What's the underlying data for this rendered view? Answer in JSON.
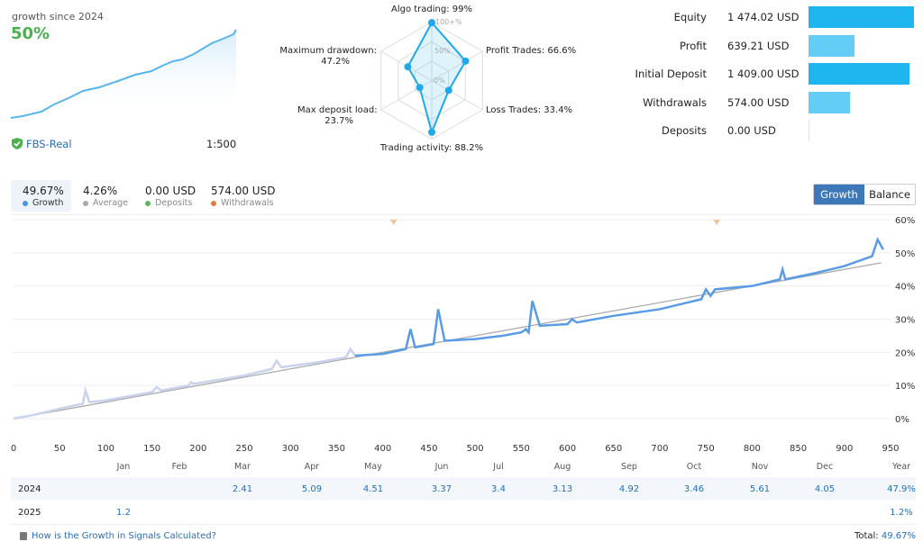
{
  "summary": {
    "title": "growth since 2024",
    "growth": "50%",
    "broker": "FBS-Real",
    "leverage": "1:500"
  },
  "radar": {
    "axes": [
      {
        "label": "Algo trading: 99%",
        "value": 99
      },
      {
        "label": "Profit Trades: 66.6%",
        "value": 66.6
      },
      {
        "label": "Loss Trades: 33.4%",
        "value": 33.4
      },
      {
        "label": "Trading activity: 88.2%",
        "value": 88.2
      },
      {
        "label": "Max deposit load:",
        "sub": "23.7%",
        "value": 23.7
      },
      {
        "label": "Maximum drawdown:",
        "sub": "47.2%",
        "value": 47.2
      }
    ],
    "ring_labels": [
      "100+%",
      "50%",
      "0%"
    ]
  },
  "account": [
    {
      "label": "Equity",
      "value": "1 474.02 USD",
      "amount": 1474.02,
      "color": "#1fb6f0"
    },
    {
      "label": "Profit",
      "value": "639.21 USD",
      "amount": 639.21,
      "color": "#63cdf5"
    },
    {
      "label": "Initial Deposit",
      "value": "1 409.00 USD",
      "amount": 1409,
      "color": "#1fb6f0"
    },
    {
      "label": "Withdrawals",
      "value": "574.00 USD",
      "amount": 574,
      "color": "#63cdf5"
    },
    {
      "label": "Deposits",
      "value": "0.00 USD",
      "amount": 0,
      "color": "#63cdf5"
    }
  ],
  "stats": [
    {
      "value": "49.67%",
      "label": "Growth",
      "color": "#4a90e2"
    },
    {
      "value": "4.26%",
      "label": "Average",
      "color": "#aaaaaa"
    },
    {
      "value": "0.00 USD",
      "label": "Deposits",
      "color": "#5cb85c"
    },
    {
      "value": "574.00 USD",
      "label": "Withdrawals",
      "color": "#e07b39"
    }
  ],
  "toggle": {
    "growth": "Growth",
    "balance": "Balance"
  },
  "chart_data": {
    "type": "line",
    "xlim": [
      0,
      950
    ],
    "ylim": [
      0,
      60
    ],
    "x_ticks": [
      "0",
      "50",
      "100",
      "150",
      "200",
      "250",
      "300",
      "350",
      "400",
      "450",
      "500",
      "550",
      "600",
      "650",
      "700",
      "750",
      "800",
      "850",
      "900",
      "950"
    ],
    "y_ticks": [
      "0%",
      "10%",
      "20%",
      "30%",
      "40%",
      "50%",
      "60%"
    ],
    "series": [
      {
        "name": "Growth",
        "color": "#5a9be6",
        "points": [
          [
            0,
            0
          ],
          [
            20,
            1
          ],
          [
            50,
            3
          ],
          [
            75,
            4.5
          ],
          [
            78,
            8.5
          ],
          [
            82,
            5
          ],
          [
            100,
            5.5
          ],
          [
            150,
            8
          ],
          [
            155,
            9.5
          ],
          [
            160,
            8.5
          ],
          [
            190,
            10
          ],
          [
            192,
            11
          ],
          [
            195,
            10.5
          ],
          [
            250,
            13
          ],
          [
            280,
            15
          ],
          [
            285,
            17.5
          ],
          [
            290,
            15.5
          ],
          [
            330,
            17
          ],
          [
            360,
            18.5
          ],
          [
            365,
            21
          ],
          [
            370,
            19
          ],
          [
            400,
            19.5
          ],
          [
            425,
            21
          ],
          [
            430,
            27
          ],
          [
            435,
            21.5
          ],
          [
            455,
            22.5
          ],
          [
            460,
            33
          ],
          [
            467,
            23.5
          ],
          [
            500,
            24
          ],
          [
            530,
            25
          ],
          [
            550,
            26
          ],
          [
            555,
            27
          ],
          [
            558,
            26
          ],
          [
            562,
            35.5
          ],
          [
            570,
            28
          ],
          [
            600,
            28.5
          ],
          [
            605,
            30
          ],
          [
            610,
            29
          ],
          [
            650,
            31
          ],
          [
            700,
            33
          ],
          [
            745,
            36
          ],
          [
            750,
            39
          ],
          [
            755,
            37
          ],
          [
            760,
            39
          ],
          [
            800,
            40
          ],
          [
            830,
            42
          ],
          [
            833,
            45
          ],
          [
            836,
            42
          ],
          [
            870,
            44
          ],
          [
            900,
            46
          ],
          [
            930,
            49
          ],
          [
            936,
            54
          ],
          [
            942,
            51
          ]
        ]
      }
    ],
    "trend": [
      [
        0,
        0
      ],
      [
        940,
        47
      ]
    ],
    "markers_x": [
      400,
      750
    ]
  },
  "table": {
    "months": [
      "Jan",
      "Feb",
      "Mar",
      "Apr",
      "May",
      "Jun",
      "Jul",
      "Aug",
      "Sep",
      "Oct",
      "Nov",
      "Dec",
      "Year"
    ],
    "rows": [
      {
        "year": "2024",
        "values": [
          "",
          "",
          "2.41",
          "5.09",
          "4.51",
          "3.37",
          "3.4",
          "3.13",
          "4.92",
          "3.46",
          "5.61",
          "4.05",
          "47.9%"
        ]
      },
      {
        "year": "2025",
        "values": [
          "1.2",
          "",
          "",
          "",
          "",
          "",
          "",
          "",
          "",
          "",
          "",
          "",
          "1.2%"
        ]
      }
    ]
  },
  "footer": {
    "link": "How is the Growth in Signals Calculated?",
    "total_label": "Total:",
    "total_value": "49.67%"
  }
}
